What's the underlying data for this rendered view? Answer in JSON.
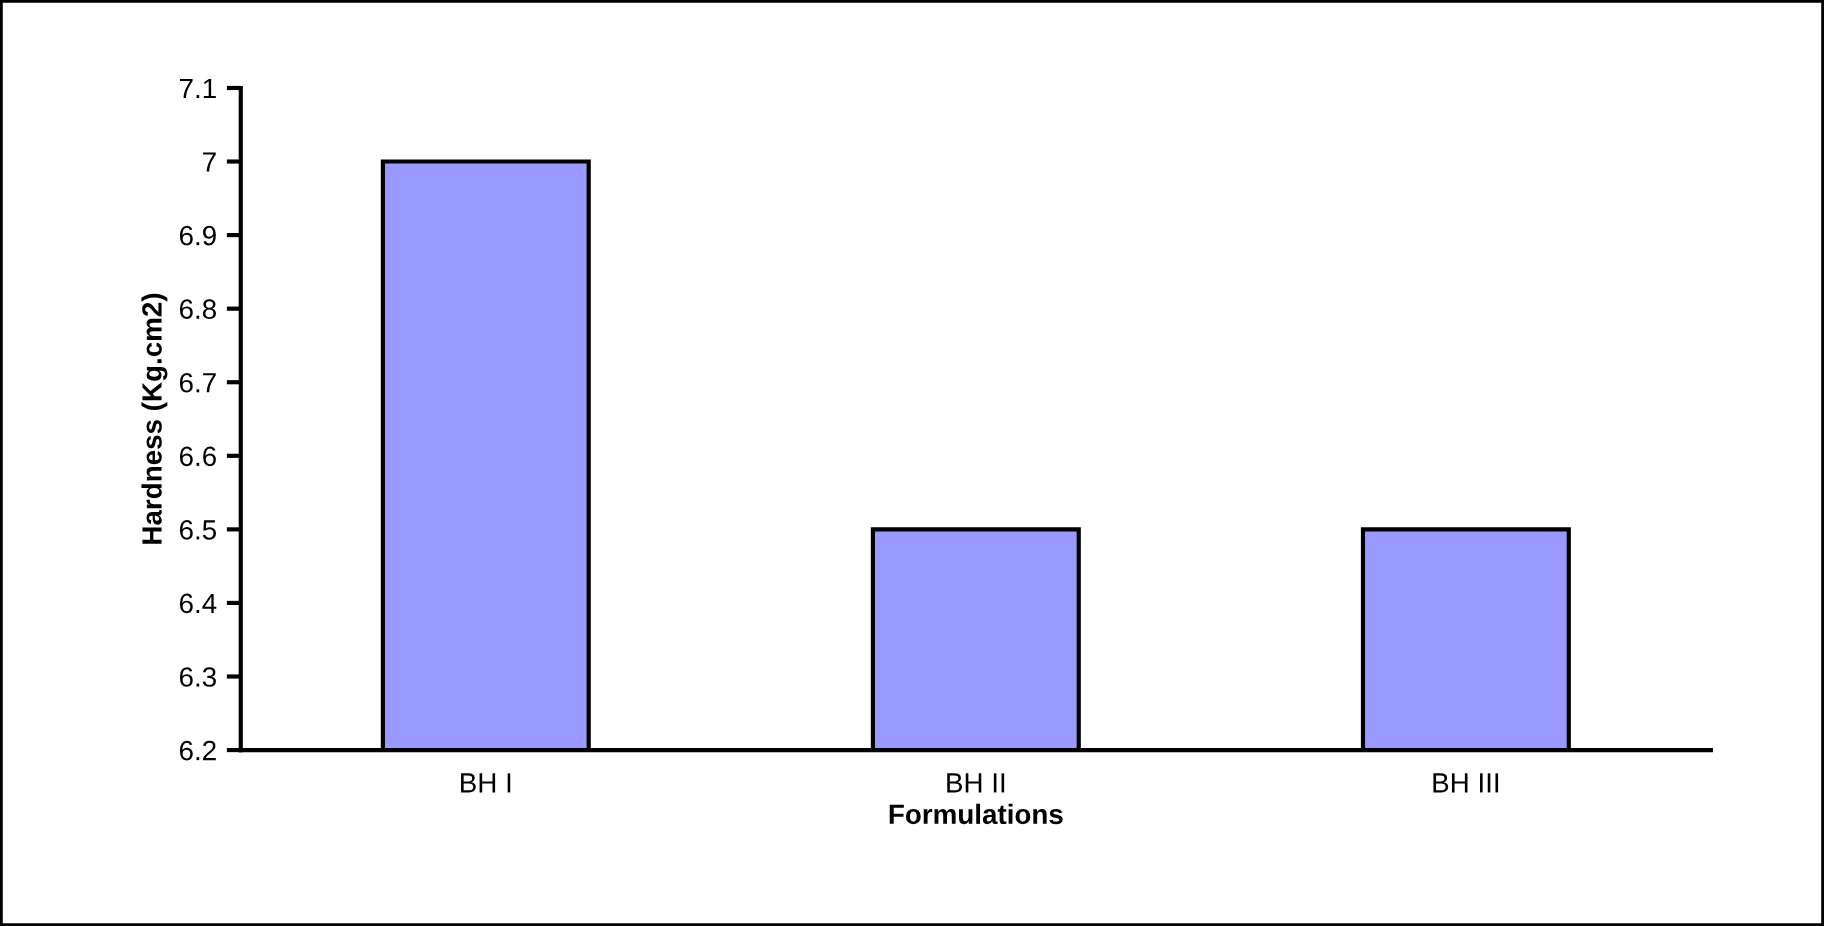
{
  "chart_data": {
    "type": "bar",
    "xlabel": "Formulations",
    "ylabel": "Hardness (Kg.cm2)",
    "categories": [
      "BH I",
      "BH II",
      "BH III"
    ],
    "values": [
      7.0,
      6.5,
      6.5
    ],
    "color": "#9999ff",
    "ylim": [
      6.2,
      7.1
    ],
    "yticks": [
      6.2,
      6.3,
      6.4,
      6.5,
      6.6,
      6.7,
      6.8,
      6.9,
      7,
      7.1
    ],
    "grid": false
  }
}
